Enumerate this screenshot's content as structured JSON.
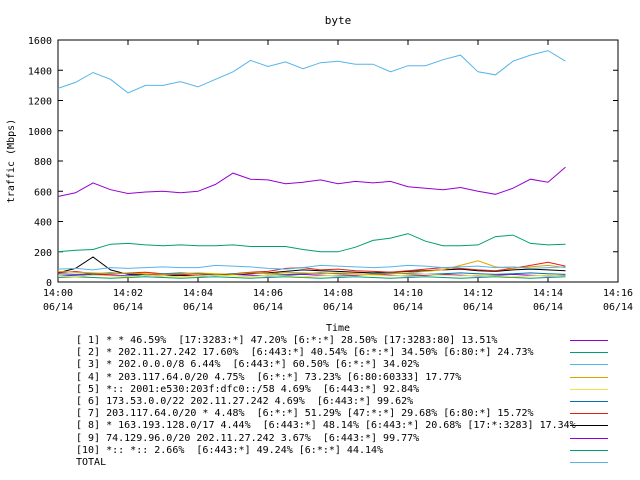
{
  "chart_data": {
    "type": "line",
    "title": "byte",
    "xlabel": "Time",
    "ylabel": "traffic (Mbps)",
    "ylim": [
      0,
      1600
    ],
    "yticks": [
      "0",
      "200",
      "400",
      "600",
      "800",
      "1000",
      "1200",
      "1400",
      "1600"
    ],
    "xticks": [
      {
        "time": "14:00",
        "date": "06/14"
      },
      {
        "time": "14:02",
        "date": "06/14"
      },
      {
        "time": "14:04",
        "date": "06/14"
      },
      {
        "time": "14:06",
        "date": "06/14"
      },
      {
        "time": "14:08",
        "date": "06/14"
      },
      {
        "time": "14:10",
        "date": "06/14"
      },
      {
        "time": "14:12",
        "date": "06/14"
      },
      {
        "time": "14:14",
        "date": "06/14"
      },
      {
        "time": "14:16",
        "date": "06/14"
      }
    ],
    "xlim_minutes": [
      0,
      16
    ],
    "x_minutes": [
      0,
      0.5,
      1,
      1.5,
      2,
      2.5,
      3,
      3.5,
      4,
      4.5,
      5,
      5.5,
      6,
      6.5,
      7,
      7.5,
      8,
      8.5,
      9,
      9.5,
      10,
      10.5,
      11,
      11.5,
      12,
      12.5,
      13,
      13.5,
      14,
      14.5
    ],
    "grid": false,
    "legend_placement": "below",
    "series": [
      {
        "name": "[ 1] * * 46.59%  [17:3283:*] 47.20% [6:*:*] 28.50% [17:3283:80] 13.51%",
        "color": "#9400d3",
        "values": [
          565,
          590,
          655,
          610,
          585,
          595,
          600,
          590,
          600,
          645,
          720,
          680,
          675,
          650,
          660,
          675,
          650,
          665,
          655,
          665,
          630,
          620,
          610,
          625,
          600,
          580,
          620,
          680,
          660,
          760
        ]
      },
      {
        "name": "[ 2] * 202.11.27.242 17.60%  [6:443:*] 40.54% [6:*:*] 34.50% [6:80:*] 24.73%",
        "color": "#009e73",
        "values": [
          200,
          210,
          215,
          250,
          255,
          245,
          240,
          245,
          240,
          240,
          245,
          235,
          235,
          235,
          215,
          200,
          200,
          230,
          275,
          290,
          320,
          270,
          240,
          240,
          245,
          300,
          310,
          255,
          245,
          250
        ]
      },
      {
        "name": "[ 3] * 202.0.0.0/8 6.44%  [6:443:*] 60.50% [6:*:*] 34.02%",
        "color": "#56b4e9",
        "values": [
          85,
          90,
          80,
          95,
          90,
          95,
          100,
          95,
          95,
          110,
          105,
          100,
          90,
          85,
          95,
          110,
          105,
          100,
          95,
          100,
          110,
          105,
          95,
          100,
          105,
          95,
          100,
          90,
          95,
          100
        ]
      },
      {
        "name": "[ 4] * 203.117.64.0/20 4.75%  [6:*:*] 73.23% [6:80:60333] 17.77%",
        "color": "#e69f00",
        "values": [
          70,
          65,
          60,
          55,
          60,
          55,
          50,
          55,
          60,
          55,
          50,
          60,
          55,
          65,
          60,
          55,
          60,
          55,
          50,
          55,
          60,
          70,
          80,
          110,
          140,
          100,
          90,
          100,
          110,
          95
        ]
      },
      {
        "name": "[ 5] *:: 2001:e530:203f:dfc0::/58 4.69%  [6:443:*] 92.84%",
        "color": "#f0e442",
        "values": [
          40,
          35,
          45,
          40,
          35,
          45,
          40,
          35,
          40,
          45,
          40,
          35,
          45,
          40,
          35,
          40,
          45,
          50,
          45,
          40,
          45,
          50,
          45,
          40,
          45,
          40,
          35,
          40,
          45,
          40
        ]
      },
      {
        "name": "[ 6] 173.53.0.0/22 202.11.27.242 4.69%  [6:443:*] 99.62%",
        "color": "#0072b2",
        "values": [
          55,
          50,
          55,
          60,
          55,
          50,
          55,
          60,
          55,
          50,
          55,
          60,
          55,
          50,
          55,
          60,
          55,
          50,
          55,
          60,
          55,
          50,
          55,
          60,
          55,
          50,
          55,
          60,
          55,
          50
        ]
      },
      {
        "name": "[ 7] 203.117.64.0/20 * 4.48%  [6:*:*] 51.29% [47:*:*] 29.68% [6:80:*] 15.72%",
        "color": "#e51e10",
        "values": [
          60,
          70,
          55,
          50,
          60,
          65,
          55,
          50,
          45,
          50,
          55,
          65,
          70,
          90,
          95,
          80,
          85,
          75,
          70,
          65,
          75,
          85,
          95,
          90,
          80,
          75,
          90,
          110,
          130,
          105
        ]
      },
      {
        "name": "[ 8] * 163.193.128.0/17 4.44%  [6:443:*] 48.14% [6:443:*] 20.68% [17:*:3283] 17.34%",
        "color": "#000000",
        "values": [
          60,
          90,
          165,
          80,
          50,
          45,
          40,
          45,
          40,
          45,
          50,
          55,
          60,
          70,
          80,
          75,
          70,
          65,
          60,
          65,
          70,
          75,
          80,
          85,
          75,
          70,
          80,
          85,
          80,
          75
        ]
      },
      {
        "name": "[ 9] 74.129.96.0/20 202.11.27.242 3.67%  [6:443:*] 99.77%",
        "color": "#9400d3",
        "values": [
          40,
          45,
          50,
          45,
          40,
          45,
          50,
          45,
          40,
          45,
          50,
          45,
          40,
          45,
          50,
          45,
          40,
          45,
          50,
          45,
          40,
          45,
          50,
          45,
          40,
          45,
          50,
          45,
          40,
          45
        ]
      },
      {
        "name": "[10] *:: *:: 2.66%  [6:443:*] 49.24% [6:*:*] 44.14%",
        "color": "#009e73",
        "values": [
          30,
          35,
          30,
          25,
          30,
          35,
          30,
          25,
          30,
          35,
          30,
          25,
          30,
          35,
          30,
          25,
          30,
          35,
          30,
          25,
          30,
          35,
          30,
          25,
          30,
          35,
          30,
          25,
          30,
          35
        ]
      },
      {
        "name": "TOTAL",
        "color": "#56b4e9",
        "values": [
          1280,
          1320,
          1385,
          1340,
          1250,
          1300,
          1300,
          1325,
          1290,
          1340,
          1390,
          1465,
          1425,
          1455,
          1410,
          1450,
          1460,
          1440,
          1440,
          1390,
          1430,
          1430,
          1470,
          1500,
          1390,
          1370,
          1460,
          1500,
          1530,
          1460
        ]
      }
    ]
  }
}
